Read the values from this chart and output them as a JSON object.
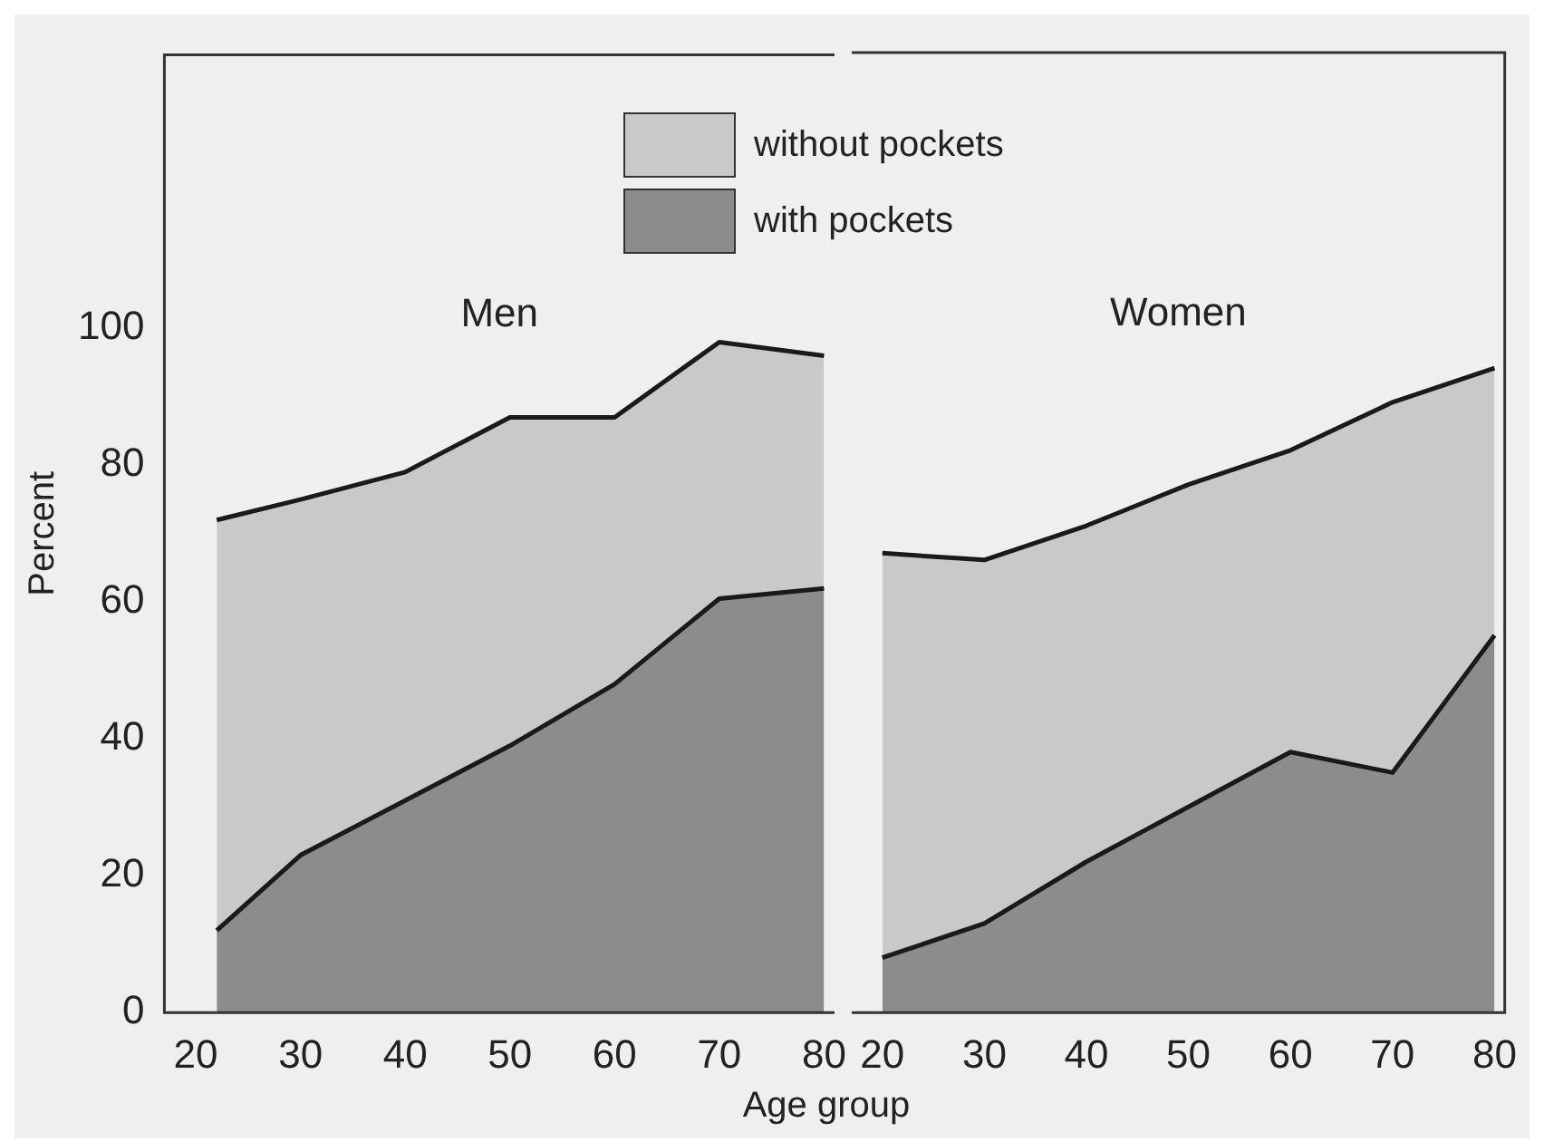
{
  "chart_data": [
    {
      "type": "area",
      "title": "Men",
      "xlabel": "Age group",
      "ylabel": "Percent",
      "stacked": true,
      "legend": "top",
      "x": [
        22,
        30,
        40,
        50,
        60,
        70,
        80
      ],
      "xlim": [
        17,
        81
      ],
      "xticks": [
        20,
        30,
        40,
        50,
        60,
        70,
        80
      ],
      "ylim": [
        0,
        140
      ],
      "yticks": [
        0,
        20,
        40,
        60,
        80,
        100
      ],
      "series": [
        {
          "name": "with pockets",
          "color": "#8c8c8c",
          "values": [
            12,
            23,
            31,
            39,
            48,
            60.5,
            62
          ]
        },
        {
          "name": "without pockets",
          "color": "#c9c9c9",
          "values": [
            60,
            52,
            48,
            48,
            39,
            37.5,
            34
          ]
        }
      ]
    },
    {
      "type": "area",
      "title": "Women",
      "stacked": true,
      "tick_labels": "x",
      "x": [
        20,
        30,
        40,
        50,
        60,
        70,
        80
      ],
      "xlim": [
        17,
        81
      ],
      "xticks": [
        20,
        30,
        40,
        50,
        60,
        70,
        80
      ],
      "ylim": [
        0,
        140
      ],
      "yticks": [
        0,
        20,
        40,
        60,
        80,
        100
      ],
      "series": [
        {
          "color": "#8c8c8c",
          "values": [
            8,
            13,
            22,
            30,
            38,
            35,
            55
          ]
        },
        {
          "color": "#c9c9c9",
          "values": [
            59,
            53,
            49,
            47,
            44,
            54,
            39
          ]
        }
      ]
    }
  ]
}
